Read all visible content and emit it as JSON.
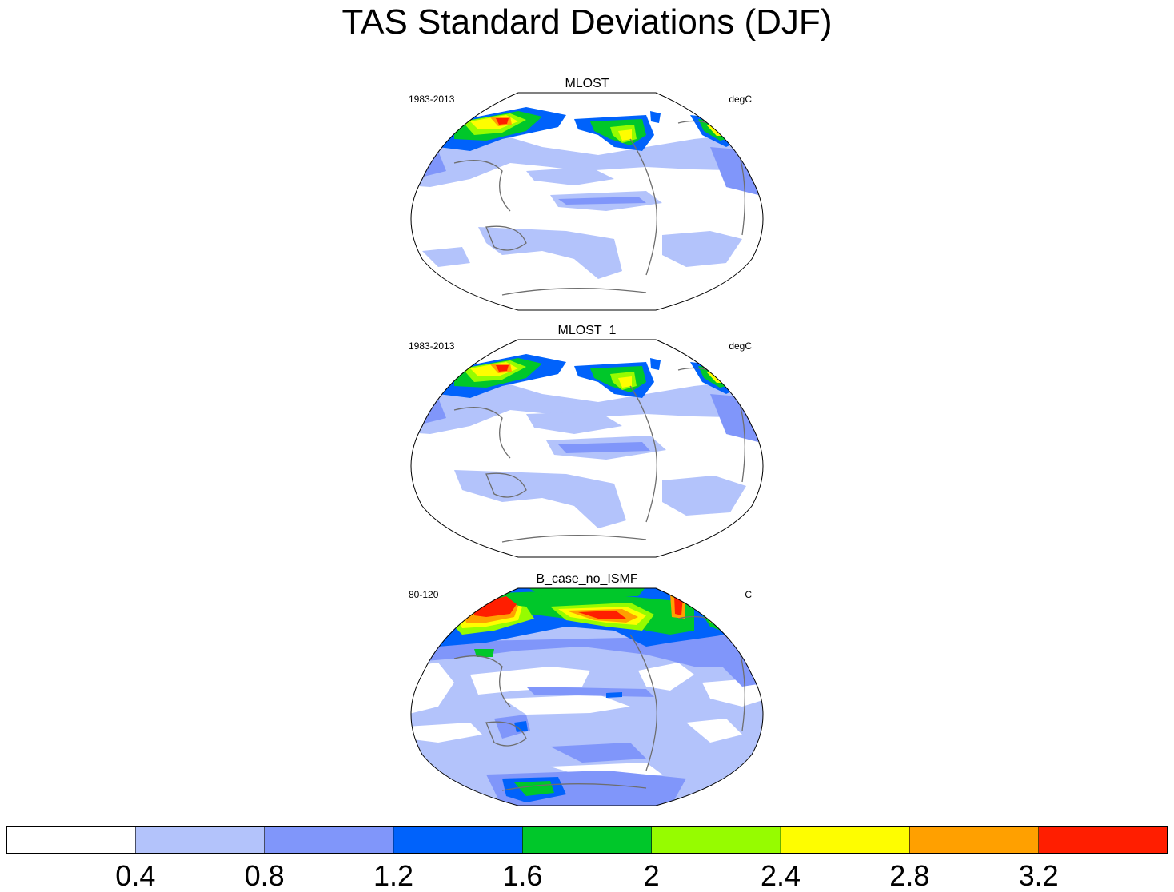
{
  "title": "TAS Standard Deviations (DJF)",
  "panels": [
    {
      "name": "MLOST",
      "period": "1983-2013",
      "units": "degC"
    },
    {
      "name": "MLOST_1",
      "period": "1983-2013",
      "units": "degC"
    },
    {
      "name": "B_case_no_ISMF",
      "period": "80-120",
      "units": "C"
    }
  ],
  "colorbar": {
    "levels": [
      "0.4",
      "0.8",
      "1.2",
      "1.6",
      "2",
      "2.4",
      "2.8",
      "3.2"
    ],
    "colors": [
      "#ffffff",
      "#b3c3fb",
      "#8096fa",
      "#0062fb",
      "#00c72a",
      "#96fc00",
      "#fefd00",
      "#ffa000",
      "#ff1e00"
    ]
  },
  "chart_data": {
    "type": "heatmap",
    "title": "TAS Standard Deviations (DJF)",
    "colorbar_levels": [
      0.4,
      0.8,
      1.2,
      1.6,
      2,
      2.4,
      2.8,
      3.2
    ],
    "panels": [
      "MLOST",
      "MLOST_1",
      "B_case_no_ISMF"
    ]
  }
}
